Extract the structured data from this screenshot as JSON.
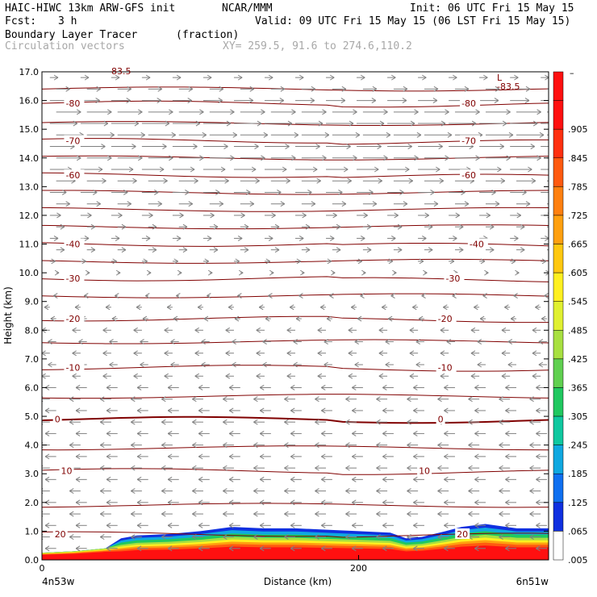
{
  "header": {
    "model": "HAIC-HIWC 13km ARW-GFS init",
    "org": "NCAR/MMM",
    "init": "Init: 06 UTC Fri 15 May 15",
    "fcst_label": "Fcst:",
    "fcst_value": "3 h",
    "valid": "Valid: 09 UTC Fri 15 May 15 (06 LST Fri 15 May 15)",
    "field": "Boundary Layer Tracer",
    "units": "(fraction)",
    "vectors": "Circulation vectors",
    "xy": "XY= 259.5, 91.6 to 274.6,110.2"
  },
  "chart_data": {
    "type": "contour",
    "xlabel": "Distance (km)",
    "ylabel": "Height (km)",
    "xlim": [
      0,
      320
    ],
    "ylim": [
      0,
      17
    ],
    "x_ticks": [
      0,
      200
    ],
    "y_ticks": [
      "0.0",
      "1.0",
      "2.0",
      "3.0",
      "4.0",
      "5.0",
      "6.0",
      "7.0",
      "8.0",
      "9.0",
      "10.0",
      "11.0",
      "12.0",
      "13.0",
      "14.0",
      "15.0",
      "16.0",
      "17.0"
    ],
    "left_endpoint": "4n53w",
    "right_endpoint": "6n51w",
    "top_partial_label": "83.5",
    "low_label": "L",
    "low_value": "-83.5",
    "temperature_isotherms": [
      {
        "label": "-80",
        "height": 15.9
      },
      {
        "label": "-70",
        "height": 14.6
      },
      {
        "label": "-60",
        "height": 13.4
      },
      {
        "label": "-40",
        "height": 11.0
      },
      {
        "label": "-30",
        "height": 9.8
      },
      {
        "label": "-20",
        "height": 8.4
      },
      {
        "label": "-10",
        "height": 6.7
      },
      {
        "label": "0",
        "height": 4.9
      },
      {
        "label": "10",
        "height": 3.1
      },
      {
        "label": "20",
        "height": 0.9
      }
    ],
    "contour_labels": [
      {
        "text": "-80",
        "x": 15,
        "y": 15.9
      },
      {
        "text": "-80",
        "x": 265,
        "y": 15.9
      },
      {
        "text": "-70",
        "x": 15,
        "y": 14.6
      },
      {
        "text": "-70",
        "x": 265,
        "y": 14.6
      },
      {
        "text": "-60",
        "x": 15,
        "y": 13.4
      },
      {
        "text": "-60",
        "x": 265,
        "y": 13.4
      },
      {
        "text": "-40",
        "x": 15,
        "y": 11.0
      },
      {
        "text": "-40",
        "x": 270,
        "y": 11.0
      },
      {
        "text": "-30",
        "x": 15,
        "y": 9.8
      },
      {
        "text": "-30",
        "x": 255,
        "y": 9.8
      },
      {
        "text": "-20",
        "x": 15,
        "y": 8.4
      },
      {
        "text": "-20",
        "x": 250,
        "y": 8.4
      },
      {
        "text": "-10",
        "x": 15,
        "y": 6.7
      },
      {
        "text": "-10",
        "x": 250,
        "y": 6.7
      },
      {
        "text": "0",
        "x": 8,
        "y": 4.9
      },
      {
        "text": "0",
        "x": 250,
        "y": 4.9
      },
      {
        "text": "10",
        "x": 12,
        "y": 3.1
      },
      {
        "text": "10",
        "x": 238,
        "y": 3.1
      },
      {
        "text": "20",
        "x": 8,
        "y": 0.9
      },
      {
        "text": "20",
        "x": 262,
        "y": 0.9
      }
    ],
    "colorbar": {
      "labels": [
        ".905",
        ".845",
        ".785",
        ".725",
        ".665",
        ".605",
        ".545",
        ".485",
        ".425",
        ".365",
        ".305",
        ".245",
        ".185",
        ".125",
        ".065",
        ".005"
      ],
      "colors": [
        "#ff1010",
        "#ff3010",
        "#ff5a10",
        "#ff8010",
        "#ffa010",
        "#ffc810",
        "#fff020",
        "#e0f030",
        "#a8e040",
        "#60d050",
        "#20c860",
        "#10c8a0",
        "#10a8e0",
        "#1070f0",
        "#1030e0",
        "#ffffff"
      ]
    },
    "tracer_layer": {
      "description_free": true,
      "top_profile": [
        [
          0,
          0.25
        ],
        [
          20,
          0.3
        ],
        [
          40,
          0.4
        ],
        [
          50,
          0.75
        ],
        [
          60,
          0.85
        ],
        [
          80,
          0.9
        ],
        [
          100,
          1.0
        ],
        [
          120,
          1.15
        ],
        [
          140,
          1.1
        ],
        [
          160,
          1.1
        ],
        [
          180,
          1.05
        ],
        [
          200,
          1.0
        ],
        [
          220,
          0.95
        ],
        [
          230,
          0.75
        ],
        [
          240,
          0.8
        ],
        [
          255,
          1.0
        ],
        [
          265,
          1.15
        ],
        [
          280,
          1.25
        ],
        [
          300,
          1.1
        ],
        [
          320,
          1.1
        ]
      ]
    },
    "wind_vectors": {
      "rows": [
        16.8,
        16.4,
        16.0,
        15.6,
        15.2,
        14.8,
        14.4,
        14.0,
        13.6,
        13.2,
        12.8,
        12.4,
        12.0,
        11.6,
        11.2,
        10.8,
        10.4,
        10.0,
        9.6,
        9.2,
        8.8,
        8.4,
        8.0,
        7.6,
        7.2,
        6.8,
        6.4,
        6.0,
        5.6,
        5.2,
        4.8,
        4.4,
        4.0,
        3.6,
        3.2,
        2.8,
        2.4,
        2.0,
        1.6,
        1.2,
        0.8,
        0.4
      ],
      "u_by_row": [
        3,
        5,
        7,
        9,
        10,
        10,
        9,
        9,
        8,
        7,
        6,
        5,
        4,
        3,
        3,
        3,
        2,
        1,
        0,
        -1,
        -2,
        -2,
        -3,
        -3,
        -3,
        -3,
        -3,
        -4,
        -4,
        -4,
        -4,
        -4,
        -4,
        -4,
        -4,
        -4,
        -4,
        -4,
        -4,
        -4,
        -4,
        -4
      ],
      "columns": 17
    }
  }
}
